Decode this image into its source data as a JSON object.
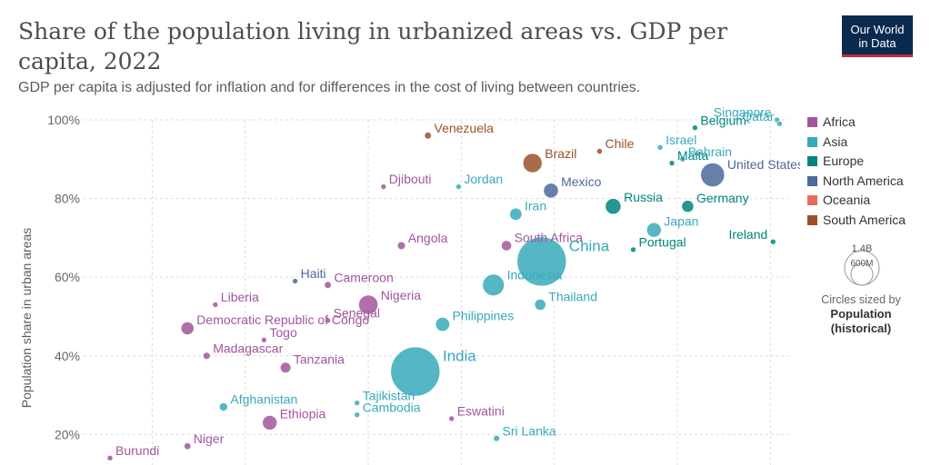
{
  "header": {
    "title": "Share of the population living in urbanized areas vs. GDP per capita, 2022",
    "subtitle": "GDP per capita is adjusted for inflation and for differences in the cost of living between countries.",
    "logo_line1": "Our World",
    "logo_line2": "in Data"
  },
  "legend": {
    "items": [
      {
        "label": "Africa",
        "color": "#a2559c"
      },
      {
        "label": "Asia",
        "color": "#38aaba"
      },
      {
        "label": "Europe",
        "color": "#00847e"
      },
      {
        "label": "North America",
        "color": "#4c6a9c"
      },
      {
        "label": "Oceania",
        "color": "#e56e5a"
      },
      {
        "label": "South America",
        "color": "#9a5129"
      }
    ],
    "size_big": "1.4B",
    "size_small": "600M",
    "size_caption": "Circles sized by",
    "size_caption_bold1": "Population",
    "size_caption_bold2": "(historical)"
  },
  "chart_data": {
    "type": "scatter",
    "ylabel": "Population share in urban areas",
    "x_scale": "log",
    "ylim": [
      15,
      100
    ],
    "yticks": [
      "20%",
      "40%",
      "60%",
      "80%",
      "100%"
    ],
    "ytick_values": [
      20,
      40,
      60,
      80,
      100
    ],
    "grid": true,
    "legend_position": "right",
    "points": [
      {
        "label": "Venezuela",
        "region": "South America",
        "gdp": 7800,
        "urban": 96,
        "pop": 28
      },
      {
        "label": "Brazil",
        "region": "South America",
        "gdp": 17000,
        "urban": 89,
        "pop": 215
      },
      {
        "label": "Chile",
        "region": "South America",
        "gdp": 28000,
        "urban": 92,
        "pop": 19
      },
      {
        "label": "Djibouti",
        "region": "Africa",
        "gdp": 5600,
        "urban": 83,
        "pop": 1
      },
      {
        "label": "Jordan",
        "region": "Asia",
        "gdp": 9800,
        "urban": 83,
        "pop": 11
      },
      {
        "label": "Mexico",
        "region": "North America",
        "gdp": 19500,
        "urban": 82,
        "pop": 127
      },
      {
        "label": "Belgium",
        "region": "Europe",
        "gdp": 57000,
        "urban": 98,
        "pop": 11
      },
      {
        "label": "Singapore",
        "region": "Asia",
        "gdp": 105000,
        "urban": 100,
        "pop": 6
      },
      {
        "label": "Malta",
        "region": "Europe",
        "gdp": 48000,
        "urban": 89,
        "pop": 1
      },
      {
        "label": "United States",
        "region": "North America",
        "gdp": 65000,
        "urban": 86,
        "pop": 333
      },
      {
        "label": "Russia",
        "region": "Europe",
        "gdp": 31000,
        "urban": 78,
        "pop": 144
      },
      {
        "label": "Iran",
        "region": "Asia",
        "gdp": 15000,
        "urban": 76,
        "pop": 88
      },
      {
        "label": "Germany",
        "region": "Europe",
        "gdp": 54000,
        "urban": 78,
        "pop": 84
      },
      {
        "label": "Japan",
        "region": "Asia",
        "gdp": 42000,
        "urban": 72,
        "pop": 125
      },
      {
        "label": "Ireland",
        "region": "Europe",
        "gdp": 102000,
        "urban": 69,
        "pop": 5
      },
      {
        "label": "Portugal",
        "region": "Europe",
        "gdp": 36000,
        "urban": 67,
        "pop": 10
      },
      {
        "label": "South Africa",
        "region": "Africa",
        "gdp": 14000,
        "urban": 68,
        "pop": 60
      },
      {
        "label": "Cameroon",
        "region": "Africa",
        "gdp": 3700,
        "urban": 58,
        "pop": 28
      },
      {
        "label": "Angola",
        "region": "Africa",
        "gdp": 6400,
        "urban": 68,
        "pop": 35
      },
      {
        "label": "Haiti",
        "region": "North America",
        "gdp": 2900,
        "urban": 59,
        "pop": 11
      },
      {
        "label": "Philippines",
        "region": "Asia",
        "gdp": 8700,
        "urban": 48,
        "pop": 115
      },
      {
        "label": "China",
        "region": "Asia",
        "gdp": 18200,
        "urban": 64,
        "pop": 1412
      },
      {
        "label": "Nigeria",
        "region": "Africa",
        "gdp": 5000,
        "urban": 53,
        "pop": 218
      },
      {
        "label": "Israel",
        "region": "Asia",
        "gdp": 44000,
        "urban": 93,
        "pop": 10
      },
      {
        "label": "Liberia",
        "region": "Africa",
        "gdp": 1600,
        "urban": 53,
        "pop": 5
      },
      {
        "label": "Togo",
        "region": "Africa",
        "gdp": 2300,
        "urban": 44,
        "pop": 9
      },
      {
        "label": "Senegal",
        "region": "Africa",
        "gdp": 3700,
        "urban": 49,
        "pop": 17
      },
      {
        "label": "Indonesia",
        "region": "Asia",
        "gdp": 12700,
        "urban": 58,
        "pop": 275
      },
      {
        "label": "Democratic Republic of Congo",
        "region": "Africa",
        "gdp": 1300,
        "urban": 47,
        "pop": 99
      },
      {
        "label": "Qatar",
        "region": "Asia",
        "gdp": 107000,
        "urban": 99,
        "pop": 3
      },
      {
        "label": "India",
        "region": "Asia",
        "gdp": 7100,
        "urban": 36,
        "pop": 1417
      },
      {
        "label": "Thailand",
        "region": "Asia",
        "gdp": 18000,
        "urban": 53,
        "pop": 72
      },
      {
        "label": "Madagascar",
        "region": "Africa",
        "gdp": 1500,
        "urban": 40,
        "pop": 30
      },
      {
        "label": "Tanzania",
        "region": "Africa",
        "gdp": 2700,
        "urban": 37,
        "pop": 65
      },
      {
        "label": "Tajikistan",
        "region": "Asia",
        "gdp": 4600,
        "urban": 28,
        "pop": 10
      },
      {
        "label": "Afghanistan",
        "region": "Asia",
        "gdp": 1700,
        "urban": 27,
        "pop": 41
      },
      {
        "label": "Eswatini",
        "region": "Africa",
        "gdp": 9300,
        "urban": 24,
        "pop": 1
      },
      {
        "label": "Cambodia",
        "region": "Asia",
        "gdp": 4600,
        "urban": 25,
        "pop": 17
      },
      {
        "label": "Niger",
        "region": "Africa",
        "gdp": 1300,
        "urban": 17,
        "pop": 26
      },
      {
        "label": "Ethiopia",
        "region": "Africa",
        "gdp": 2400,
        "urban": 23,
        "pop": 123
      },
      {
        "label": "Bahrain",
        "region": "Asia",
        "gdp": 52000,
        "urban": 90,
        "pop": 1
      },
      {
        "label": "Sri Lanka",
        "region": "Asia",
        "gdp": 13000,
        "urban": 19,
        "pop": 22
      },
      {
        "label": "Burundi",
        "region": "Africa",
        "gdp": 730,
        "urban": 14,
        "pop": 13
      }
    ]
  }
}
